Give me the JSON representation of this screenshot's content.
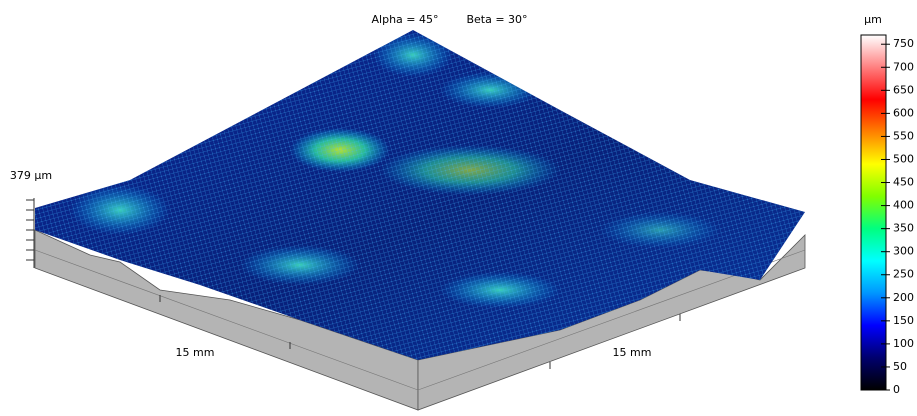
{
  "chart_data": {
    "type": "surface",
    "annotations": [
      "Alpha = 45°",
      "Beta = 30°"
    ],
    "z_label": "379 µm",
    "x_label": "15 mm",
    "y_label": "15 mm",
    "colorbar": {
      "label": "µm",
      "lim": [
        0,
        770
      ],
      "ticks": [
        0,
        50,
        100,
        150,
        200,
        250,
        300,
        350,
        400,
        450,
        500,
        550,
        600,
        650,
        700,
        750
      ],
      "colormap": [
        "#000000",
        "#00006e",
        "#0000ff",
        "#0096ff",
        "#00ffff",
        "#00ff80",
        "#80ff00",
        "#ffff00",
        "#ff8000",
        "#ff0000",
        "#ff8080",
        "#ffffff"
      ]
    }
  }
}
